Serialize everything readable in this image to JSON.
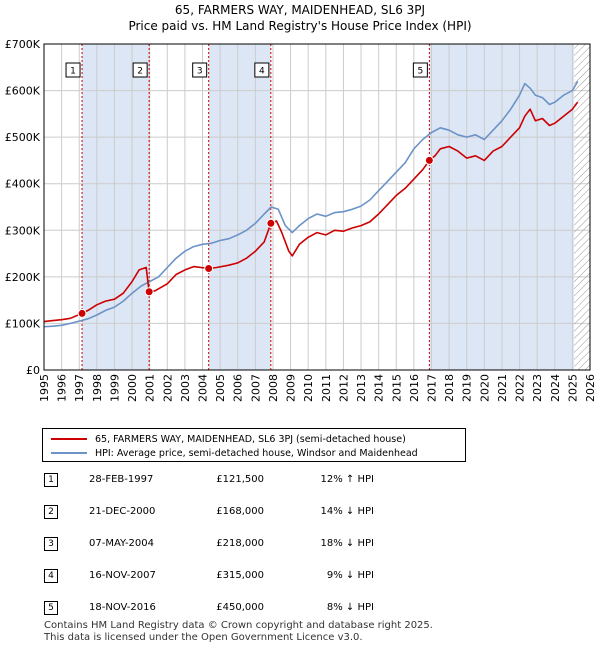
{
  "title": "65, FARMERS WAY, MAIDENHEAD, SL6 3PJ",
  "subtitle": "Price paid vs. HM Land Registry's House Price Index (HPI)",
  "colors": {
    "red": "#cc0000",
    "blue": "#6b93c7",
    "band": "#dce6f5",
    "grid": "#cccccc"
  },
  "chart_data": {
    "type": "line",
    "xlim": [
      1995,
      2026
    ],
    "ylim": [
      0,
      700000
    ],
    "x_ticks": [
      "1995",
      "1996",
      "1997",
      "1998",
      "1999",
      "2000",
      "2001",
      "2002",
      "2003",
      "2004",
      "2005",
      "2006",
      "2007",
      "2008",
      "2009",
      "2010",
      "2011",
      "2012",
      "2013",
      "2014",
      "2015",
      "2016",
      "2017",
      "2018",
      "2019",
      "2020",
      "2021",
      "2022",
      "2023",
      "2024",
      "2025",
      "2026"
    ],
    "y_ticks": [
      {
        "value": 0,
        "label": "£0"
      },
      {
        "value": 100000,
        "label": "£100K"
      },
      {
        "value": 200000,
        "label": "£200K"
      },
      {
        "value": 300000,
        "label": "£300K"
      },
      {
        "value": 400000,
        "label": "£400K"
      },
      {
        "value": 500000,
        "label": "£500K"
      },
      {
        "value": 600000,
        "label": "£600K"
      },
      {
        "value": 700000,
        "label": "£700K"
      }
    ],
    "grid": true,
    "forecast_from": 2025.1,
    "series": [
      {
        "name": "65, FARMERS WAY, MAIDENHEAD, SL6 3PJ (semi-detached house)",
        "color": "#cc0000",
        "points": [
          [
            1995,
            104000
          ],
          [
            1995.5,
            106000
          ],
          [
            1996,
            108000
          ],
          [
            1996.5,
            111000
          ],
          [
            1997.16,
            121500
          ],
          [
            1997.5,
            128000
          ],
          [
            1998,
            140000
          ],
          [
            1998.5,
            148000
          ],
          [
            1999,
            152000
          ],
          [
            1999.5,
            165000
          ],
          [
            2000,
            190000
          ],
          [
            2000.4,
            215000
          ],
          [
            2000.8,
            220000
          ],
          [
            2000.97,
            168000
          ],
          [
            2001.3,
            170000
          ],
          [
            2002,
            185000
          ],
          [
            2002.5,
            205000
          ],
          [
            2003,
            215000
          ],
          [
            2003.5,
            222000
          ],
          [
            2004.35,
            218000
          ],
          [
            2004.8,
            220000
          ],
          [
            2005.5,
            225000
          ],
          [
            2006,
            230000
          ],
          [
            2006.5,
            240000
          ],
          [
            2007,
            255000
          ],
          [
            2007.5,
            275000
          ],
          [
            2007.88,
            315000
          ],
          [
            2008.2,
            320000
          ],
          [
            2008.5,
            295000
          ],
          [
            2008.9,
            255000
          ],
          [
            2009.1,
            245000
          ],
          [
            2009.5,
            270000
          ],
          [
            2010,
            285000
          ],
          [
            2010.5,
            295000
          ],
          [
            2011,
            290000
          ],
          [
            2011.5,
            300000
          ],
          [
            2012,
            298000
          ],
          [
            2012.5,
            305000
          ],
          [
            2013,
            310000
          ],
          [
            2013.5,
            318000
          ],
          [
            2014,
            335000
          ],
          [
            2014.5,
            355000
          ],
          [
            2015,
            375000
          ],
          [
            2015.5,
            390000
          ],
          [
            2016,
            410000
          ],
          [
            2016.5,
            430000
          ],
          [
            2016.88,
            450000
          ],
          [
            2017.2,
            460000
          ],
          [
            2017.5,
            475000
          ],
          [
            2018,
            480000
          ],
          [
            2018.5,
            470000
          ],
          [
            2019,
            455000
          ],
          [
            2019.5,
            460000
          ],
          [
            2020,
            450000
          ],
          [
            2020.5,
            470000
          ],
          [
            2021,
            480000
          ],
          [
            2021.5,
            500000
          ],
          [
            2022,
            520000
          ],
          [
            2022.3,
            545000
          ],
          [
            2022.6,
            560000
          ],
          [
            2022.9,
            535000
          ],
          [
            2023.3,
            540000
          ],
          [
            2023.7,
            525000
          ],
          [
            2024,
            530000
          ],
          [
            2024.5,
            545000
          ],
          [
            2025,
            560000
          ],
          [
            2025.3,
            575000
          ]
        ]
      },
      {
        "name": "HPI: Average price, semi-detached house, Windsor and Maidenhead",
        "color": "#6b93c7",
        "points": [
          [
            1995,
            93000
          ],
          [
            1995.5,
            94000
          ],
          [
            1996,
            96000
          ],
          [
            1996.5,
            100000
          ],
          [
            1997,
            105000
          ],
          [
            1997.5,
            110000
          ],
          [
            1998,
            118000
          ],
          [
            1998.5,
            128000
          ],
          [
            1999,
            135000
          ],
          [
            1999.5,
            148000
          ],
          [
            2000,
            165000
          ],
          [
            2000.5,
            180000
          ],
          [
            2001,
            190000
          ],
          [
            2001.5,
            200000
          ],
          [
            2002,
            220000
          ],
          [
            2002.5,
            240000
          ],
          [
            2003,
            255000
          ],
          [
            2003.5,
            265000
          ],
          [
            2004,
            270000
          ],
          [
            2004.5,
            272000
          ],
          [
            2005,
            278000
          ],
          [
            2005.5,
            282000
          ],
          [
            2006,
            290000
          ],
          [
            2006.5,
            300000
          ],
          [
            2007,
            315000
          ],
          [
            2007.5,
            335000
          ],
          [
            2007.9,
            350000
          ],
          [
            2008.3,
            345000
          ],
          [
            2008.7,
            310000
          ],
          [
            2009.1,
            295000
          ],
          [
            2009.5,
            310000
          ],
          [
            2010,
            325000
          ],
          [
            2010.5,
            335000
          ],
          [
            2011,
            330000
          ],
          [
            2011.5,
            338000
          ],
          [
            2012,
            340000
          ],
          [
            2012.5,
            345000
          ],
          [
            2013,
            352000
          ],
          [
            2013.5,
            365000
          ],
          [
            2014,
            385000
          ],
          [
            2014.5,
            405000
          ],
          [
            2015,
            425000
          ],
          [
            2015.5,
            445000
          ],
          [
            2016,
            475000
          ],
          [
            2016.5,
            495000
          ],
          [
            2017,
            510000
          ],
          [
            2017.5,
            520000
          ],
          [
            2018,
            515000
          ],
          [
            2018.5,
            505000
          ],
          [
            2019,
            500000
          ],
          [
            2019.5,
            505000
          ],
          [
            2020,
            495000
          ],
          [
            2020.5,
            515000
          ],
          [
            2021,
            535000
          ],
          [
            2021.5,
            560000
          ],
          [
            2022,
            590000
          ],
          [
            2022.3,
            615000
          ],
          [
            2022.6,
            605000
          ],
          [
            2022.9,
            590000
          ],
          [
            2023.3,
            585000
          ],
          [
            2023.7,
            570000
          ],
          [
            2024,
            575000
          ],
          [
            2024.5,
            590000
          ],
          [
            2025,
            600000
          ],
          [
            2025.3,
            620000
          ]
        ]
      }
    ],
    "markers": [
      {
        "label": "1",
        "x": 1997.16,
        "y": 121500
      },
      {
        "label": "2",
        "x": 2000.97,
        "y": 168000
      },
      {
        "label": "3",
        "x": 2004.35,
        "y": 218000
      },
      {
        "label": "4",
        "x": 2007.88,
        "y": 315000
      },
      {
        "label": "5",
        "x": 2016.88,
        "y": 450000
      }
    ]
  },
  "legend": {
    "items": [
      {
        "label": "65, FARMERS WAY, MAIDENHEAD, SL6 3PJ (semi-detached house)",
        "color": "#cc0000"
      },
      {
        "label": "HPI: Average price, semi-detached house, Windsor and Maidenhead",
        "color": "#6b93c7"
      }
    ]
  },
  "transactions": [
    {
      "num": "1",
      "date": "28-FEB-1997",
      "price": "£121,500",
      "hpi": "12% ↑ HPI"
    },
    {
      "num": "2",
      "date": "21-DEC-2000",
      "price": "£168,000",
      "hpi": "14% ↓ HPI"
    },
    {
      "num": "3",
      "date": "07-MAY-2004",
      "price": "£218,000",
      "hpi": "18% ↓ HPI"
    },
    {
      "num": "4",
      "date": "16-NOV-2007",
      "price": "£315,000",
      "hpi": "9% ↓ HPI"
    },
    {
      "num": "5",
      "date": "18-NOV-2016",
      "price": "£450,000",
      "hpi": "8% ↓ HPI"
    }
  ],
  "footer": {
    "line1": "Contains HM Land Registry data © Crown copyright and database right 2025.",
    "line2": "This data is licensed under the Open Government Licence v3.0."
  }
}
